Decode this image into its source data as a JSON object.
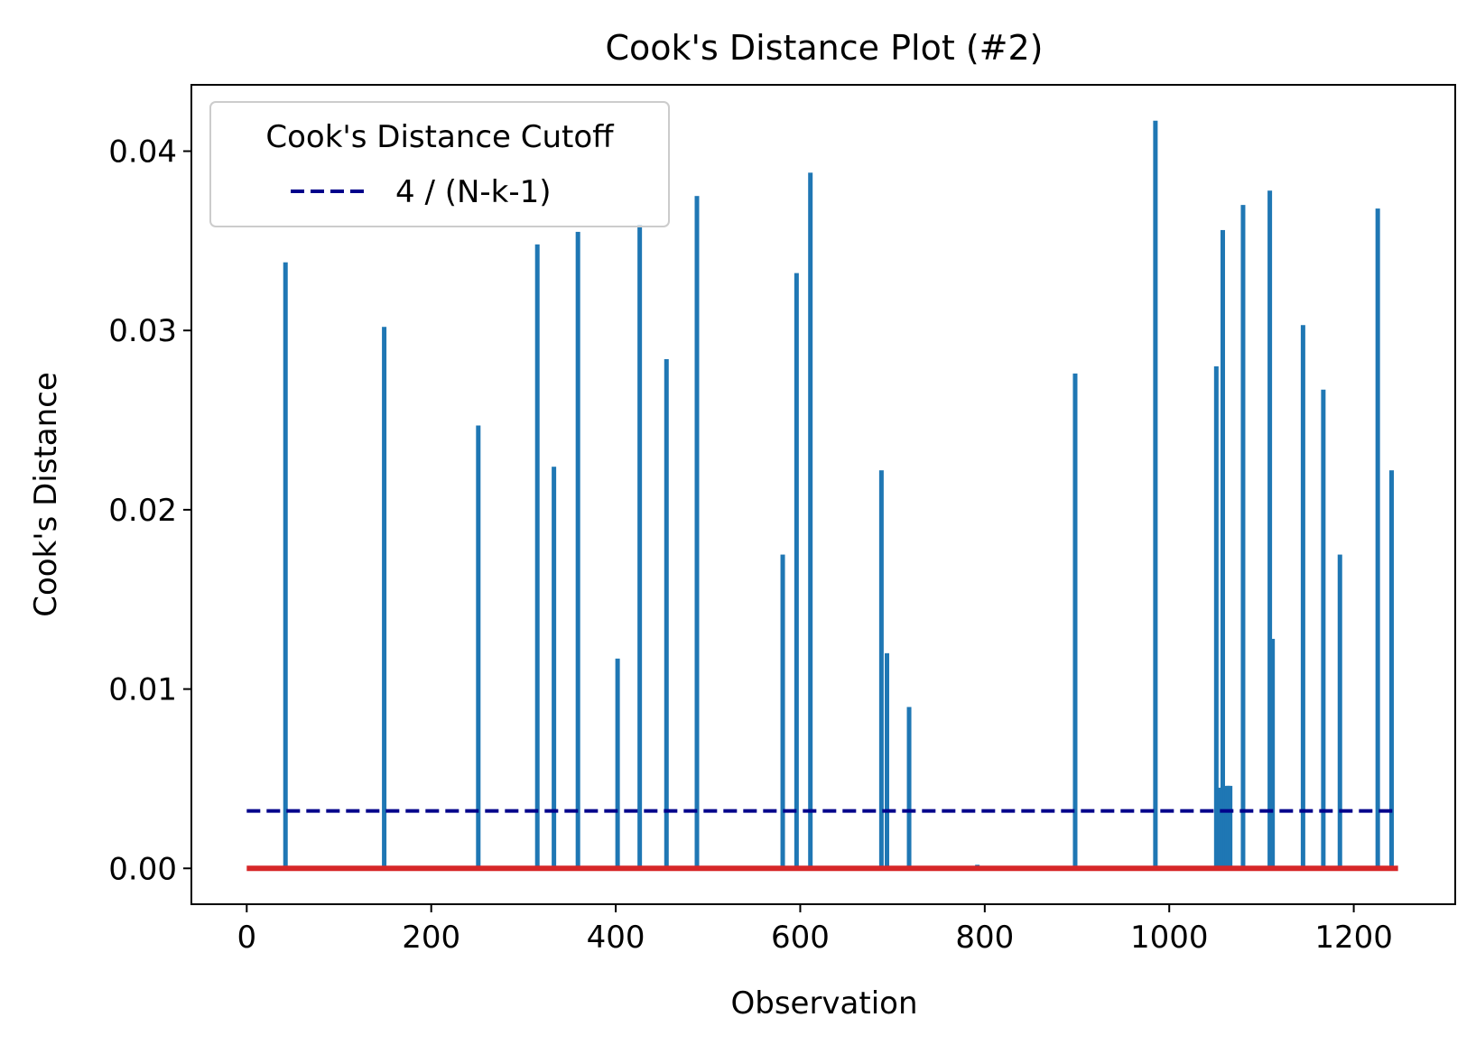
{
  "chart_data": {
    "type": "bar",
    "title": "Cook's Distance Plot (#2)",
    "xlabel": "Observation",
    "ylabel": "Cook's Distance",
    "xlim": [
      -60,
      1310
    ],
    "ylim": [
      -0.002,
      0.0437
    ],
    "xticks": [
      0,
      200,
      400,
      600,
      800,
      1000,
      1200
    ],
    "xtick_labels": [
      "0",
      "200",
      "400",
      "600",
      "800",
      "1000",
      "1200"
    ],
    "yticks": [
      0.0,
      0.01,
      0.02,
      0.03,
      0.04
    ],
    "ytick_labels": [
      "0.00",
      "0.01",
      "0.02",
      "0.03",
      "0.04"
    ],
    "grid": false,
    "legend": {
      "title": "Cook's Distance Cutoff",
      "placement": "top-left",
      "entries": [
        {
          "label": "4 / (N-k-1)",
          "style": "dashed",
          "color": "#00008b"
        }
      ]
    },
    "cutoff": {
      "value": 0.0032,
      "x_range": [
        0,
        1248
      ]
    },
    "baseline": {
      "value": 0.0,
      "x_range": [
        0,
        1248
      ],
      "color": "#d62728"
    },
    "bar_color": "#1f77b4",
    "series": [
      {
        "x": [
          42,
          149,
          251,
          315,
          333,
          359,
          402,
          410,
          426,
          455,
          488,
          581,
          596,
          611,
          688,
          694,
          718,
          792,
          898,
          985,
          1051,
          1055,
          1058,
          1060,
          1062,
          1064,
          1066,
          1080,
          1109,
          1112,
          1145,
          1167,
          1185,
          1226,
          1241
        ],
        "values": [
          0.0338,
          0.0302,
          0.0247,
          0.0348,
          0.0224,
          0.0355,
          0.0117,
          0.0001,
          0.0359,
          0.0284,
          0.0375,
          0.0175,
          0.0332,
          0.0388,
          0.0222,
          0.012,
          0.009,
          0.0002,
          0.0276,
          0.0417,
          0.028,
          0.0045,
          0.0356,
          0.0045,
          0.0046,
          0.0046,
          0.0046,
          0.037,
          0.0378,
          0.0128,
          0.0303,
          0.0267,
          0.0175,
          0.0368,
          0.0222
        ]
      }
    ]
  }
}
